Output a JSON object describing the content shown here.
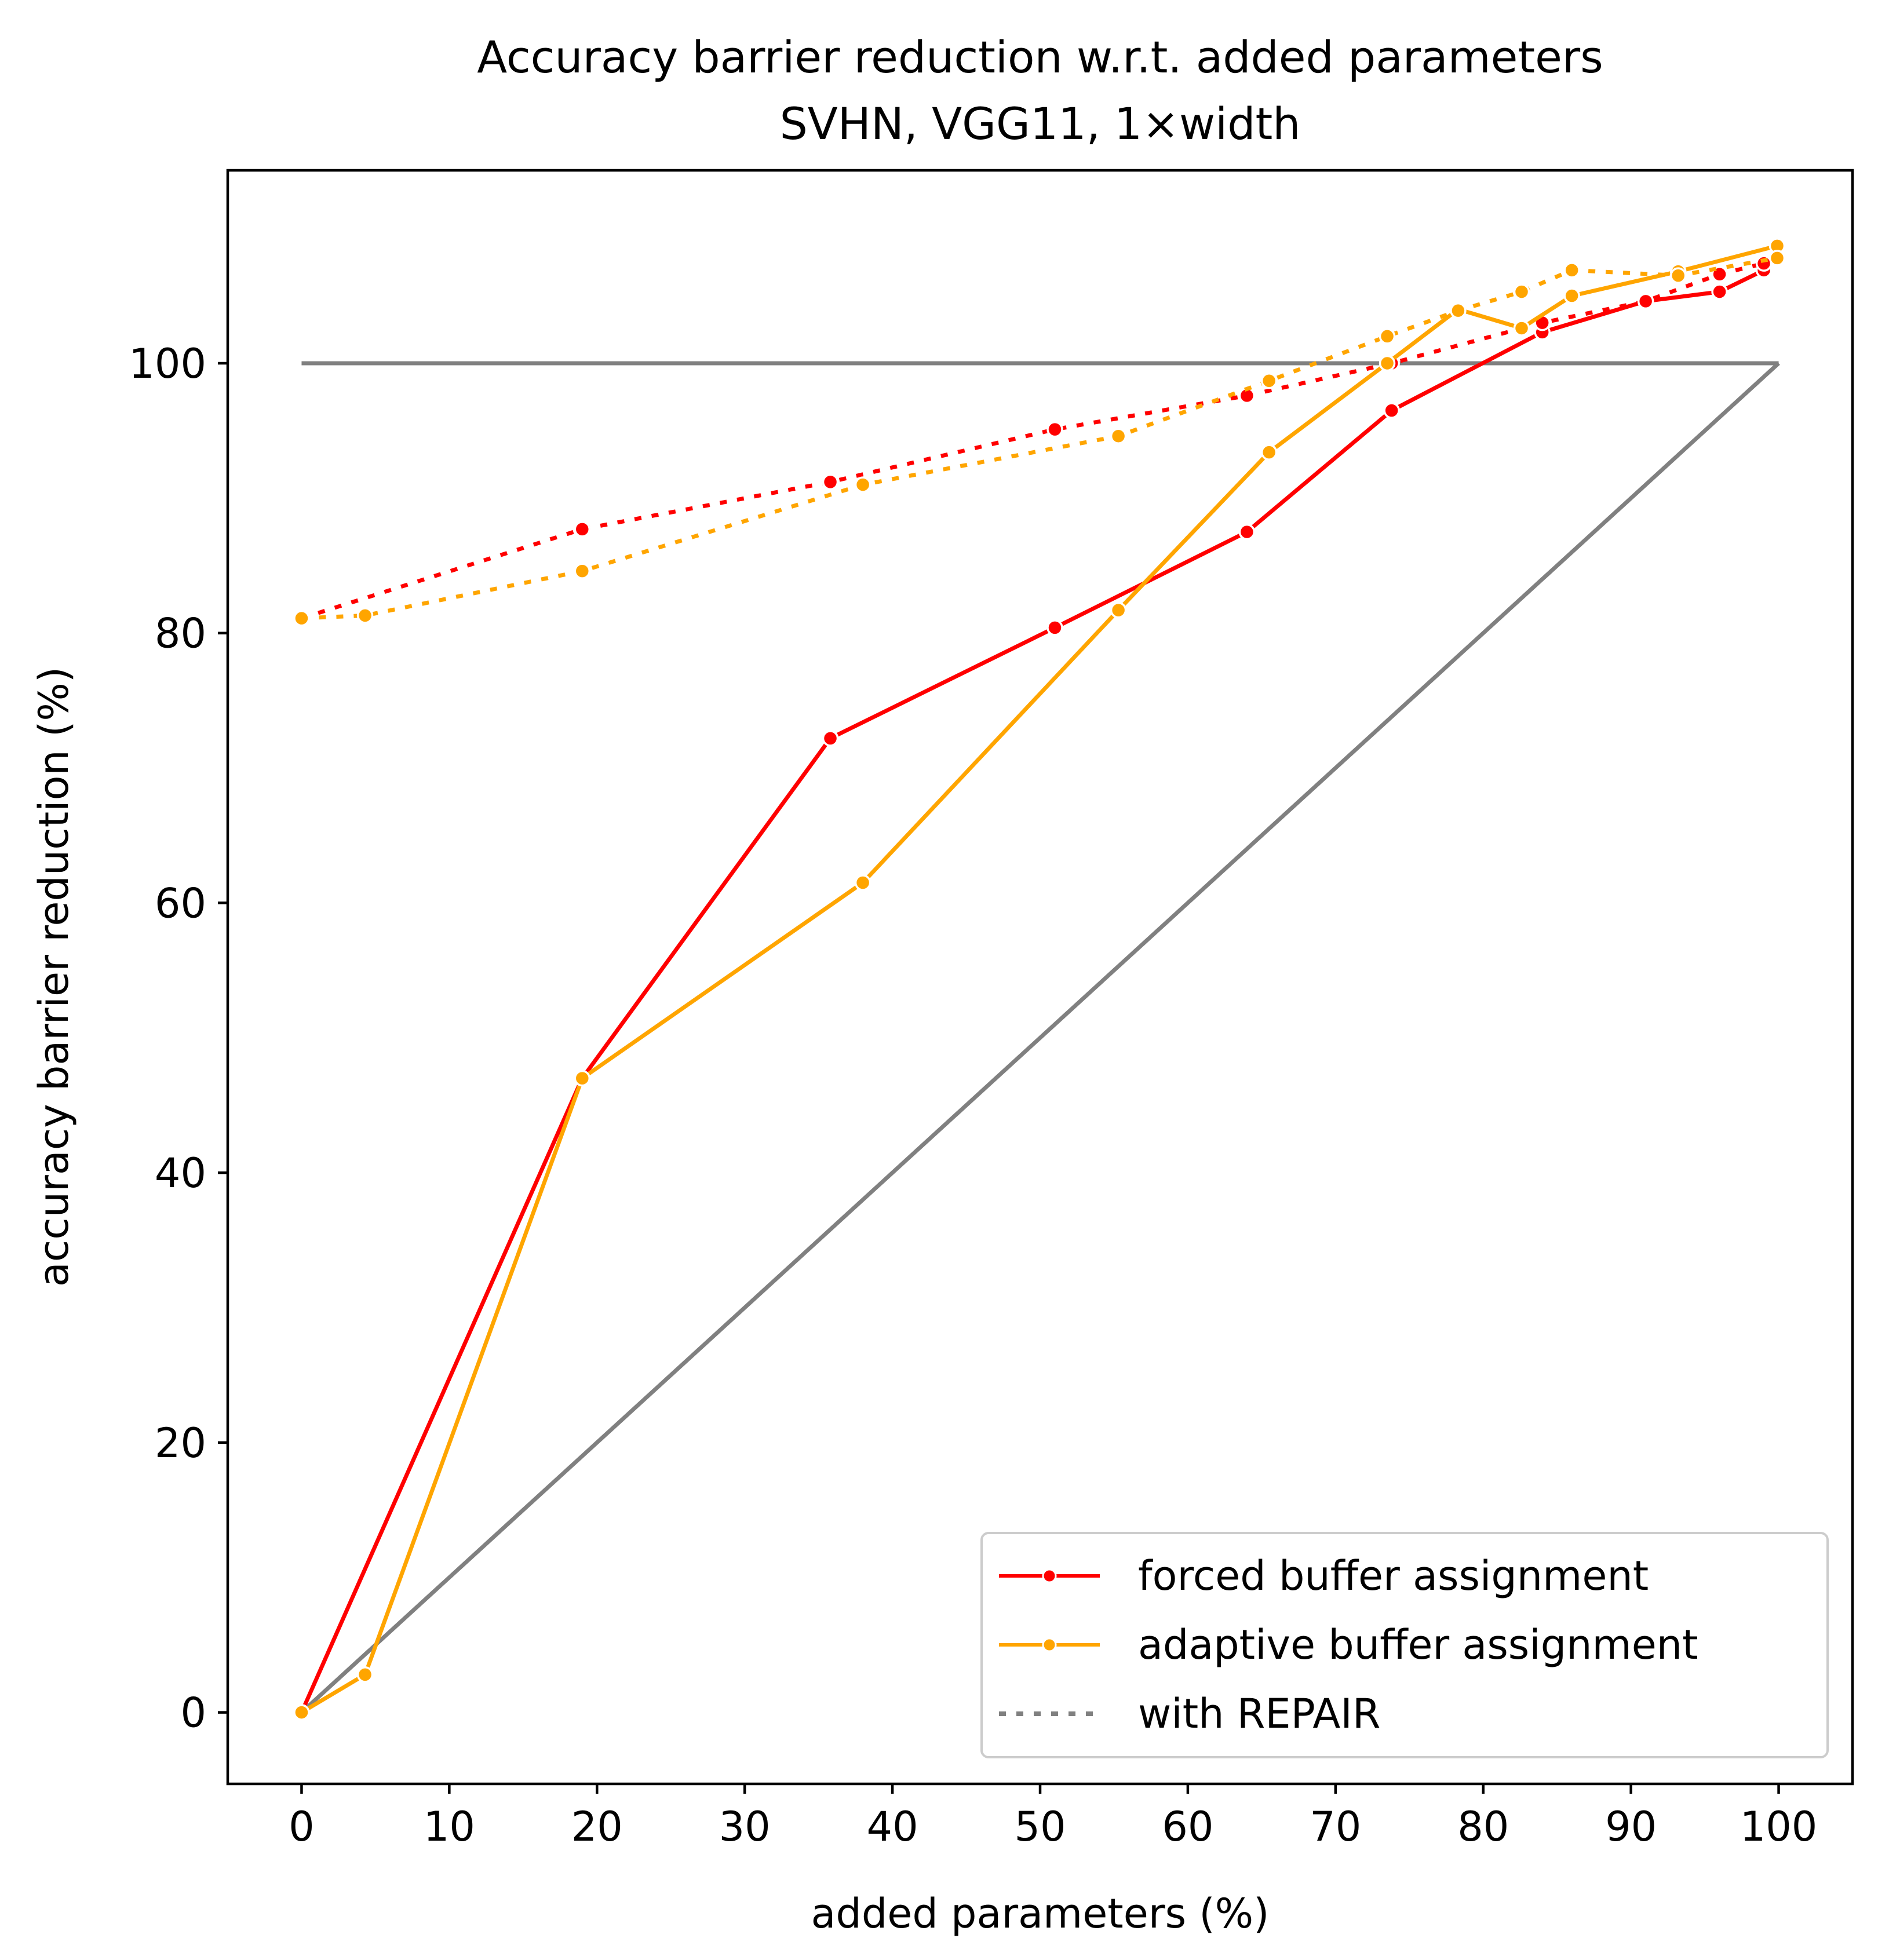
{
  "chart_data": {
    "type": "line",
    "title": "Accuracy barrier reduction w.r.t. added parameters",
    "subtitle": "SVHN, VGG11, 1×width",
    "xlabel": "added parameters (%)",
    "ylabel": "accuracy barrier reduction (%)",
    "xlim": [
      -5,
      105
    ],
    "ylim": [
      -5.3,
      114.3
    ],
    "xticks": [
      0,
      10,
      20,
      30,
      40,
      50,
      60,
      70,
      80,
      90,
      100
    ],
    "yticks": [
      0,
      20,
      40,
      60,
      80,
      100
    ],
    "grid": false,
    "legend_position": "lower-right",
    "legend": [
      {
        "label": "forced buffer assignment",
        "color": "#ff0000",
        "style": "solid-marker"
      },
      {
        "label": "adaptive buffer assignment",
        "color": "#ffa500",
        "style": "solid-marker"
      },
      {
        "label": "with REPAIR",
        "color": "#808080",
        "style": "dotted"
      }
    ],
    "reference_lines": [
      {
        "color": "#808080",
        "x": [
          0,
          100
        ],
        "y": [
          100,
          100
        ]
      },
      {
        "color": "#808080",
        "x": [
          0,
          100
        ],
        "y": [
          0,
          100
        ]
      }
    ],
    "series": [
      {
        "color": "#ff0000",
        "dash": "solid",
        "x": [
          0,
          19,
          35.8,
          51,
          64,
          73.8,
          84,
          91,
          96,
          99
        ],
        "y": [
          0,
          47,
          72.2,
          80.4,
          87.5,
          96.5,
          102.3,
          104.6,
          105.3,
          106.9
        ]
      },
      {
        "color": "#ff0000",
        "dash": "dotted",
        "x": [
          0,
          19,
          35.8,
          51,
          64,
          73.8,
          84,
          91,
          96,
          99
        ],
        "y": [
          81.1,
          87.7,
          91.2,
          95.1,
          97.6,
          100,
          103,
          104.6,
          106.6,
          107.4
        ]
      },
      {
        "color": "#ffa500",
        "dash": "solid",
        "x": [
          0,
          4.3,
          19,
          38,
          55.3,
          65.5,
          73.5,
          78.3,
          82.6,
          86,
          93.2,
          99.9
        ],
        "y": [
          0,
          2.8,
          47,
          61.5,
          81.7,
          93.4,
          100,
          104,
          102.6,
          105,
          106.8,
          108.7
        ]
      },
      {
        "color": "#ffa500",
        "dash": "dotted",
        "x": [
          0,
          4.3,
          19,
          38,
          55.3,
          65.5,
          73.5,
          78.3,
          82.6,
          86,
          93.2,
          99.9
        ],
        "y": [
          81.1,
          81.3,
          84.6,
          91,
          94.6,
          98.7,
          102,
          103.9,
          105.3,
          106.9,
          106.5,
          107.8
        ]
      }
    ]
  }
}
